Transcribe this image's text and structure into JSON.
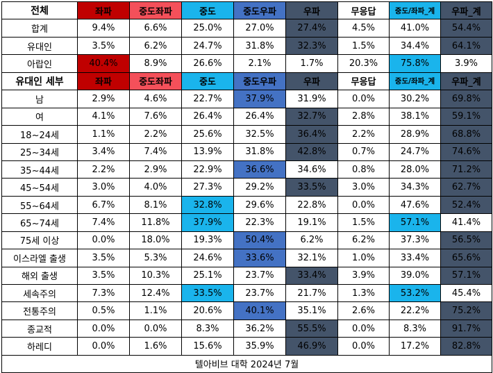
{
  "colors": {
    "left": "#c00000",
    "center_left": "#f4505a",
    "center": "#1ab4ec",
    "center_right": "#4472c4",
    "right": "#44546a",
    "none": "#ffffff"
  },
  "section_all": {
    "header": {
      "label": "전체",
      "cols": [
        "좌파",
        "중도좌파",
        "중도",
        "중도우파",
        "우파",
        "무응답",
        "중도/좌파_계",
        "우파_계"
      ],
      "col_colors": [
        "left",
        "center_left",
        "center",
        "center_right",
        "right",
        "none",
        "center",
        "right"
      ]
    },
    "rows": [
      {
        "label": "합계",
        "values": [
          "9.4%",
          "6.6%",
          "25.0%",
          "27.0%",
          "27.4%",
          "4.5%",
          "41.0%",
          "54.4%"
        ],
        "highlight": [
          "none",
          "none",
          "none",
          "none",
          "right",
          "none",
          "none",
          "right"
        ]
      },
      {
        "label": "유대인",
        "values": [
          "3.5%",
          "6.2%",
          "24.7%",
          "31.8%",
          "32.3%",
          "1.5%",
          "34.4%",
          "64.1%"
        ],
        "highlight": [
          "none",
          "none",
          "none",
          "none",
          "right",
          "none",
          "none",
          "right"
        ]
      },
      {
        "label": "아랍인",
        "values": [
          "40.4%",
          "8.9%",
          "26.6%",
          "2.1%",
          "1.7%",
          "20.3%",
          "75.8%",
          "3.9%"
        ],
        "highlight": [
          "left",
          "none",
          "none",
          "none",
          "none",
          "none",
          "center",
          "none"
        ]
      }
    ]
  },
  "section_jewish": {
    "header": {
      "label": "유대인 세부",
      "cols": [
        "좌파",
        "중도좌파",
        "중도",
        "중도우파",
        "우파",
        "무응답",
        "중도/좌파_계",
        "우파_계"
      ],
      "col_colors": [
        "left",
        "center_left",
        "center",
        "center_right",
        "right",
        "none",
        "center",
        "right"
      ]
    },
    "rows": [
      {
        "label": "남",
        "values": [
          "2.9%",
          "4.6%",
          "22.7%",
          "37.9%",
          "31.9%",
          "0.0%",
          "30.2%",
          "69.8%"
        ],
        "highlight": [
          "none",
          "none",
          "none",
          "center_right",
          "none",
          "none",
          "none",
          "right"
        ]
      },
      {
        "label": "여",
        "values": [
          "4.1%",
          "7.6%",
          "26.4%",
          "26.4%",
          "32.7%",
          "2.8%",
          "38.1%",
          "59.1%"
        ],
        "highlight": [
          "none",
          "none",
          "none",
          "none",
          "right",
          "none",
          "none",
          "right"
        ]
      },
      {
        "label": "18~24세",
        "values": [
          "1.1%",
          "2.2%",
          "25.6%",
          "32.5%",
          "36.4%",
          "2.2%",
          "28.9%",
          "68.8%"
        ],
        "highlight": [
          "none",
          "none",
          "none",
          "none",
          "right",
          "none",
          "none",
          "right"
        ]
      },
      {
        "label": "25~34세",
        "values": [
          "3.4%",
          "7.4%",
          "13.9%",
          "31.8%",
          "42.8%",
          "0.7%",
          "24.7%",
          "74.6%"
        ],
        "highlight": [
          "none",
          "none",
          "none",
          "none",
          "right",
          "none",
          "none",
          "right"
        ]
      },
      {
        "label": "35~44세",
        "values": [
          "2.2%",
          "2.9%",
          "22.9%",
          "36.6%",
          "34.6%",
          "0.8%",
          "28.0%",
          "71.2%"
        ],
        "highlight": [
          "none",
          "none",
          "none",
          "center_right",
          "none",
          "none",
          "none",
          "right"
        ]
      },
      {
        "label": "45~54세",
        "values": [
          "3.0%",
          "4.0%",
          "27.3%",
          "29.2%",
          "33.5%",
          "3.0%",
          "34.3%",
          "62.7%"
        ],
        "highlight": [
          "none",
          "none",
          "none",
          "none",
          "right",
          "none",
          "none",
          "right"
        ]
      },
      {
        "label": "55~64세",
        "values": [
          "6.7%",
          "8.1%",
          "32.8%",
          "29.6%",
          "22.8%",
          "0.0%",
          "47.6%",
          "52.4%"
        ],
        "highlight": [
          "none",
          "none",
          "center",
          "none",
          "none",
          "none",
          "none",
          "right"
        ]
      },
      {
        "label": "65~74세",
        "values": [
          "7.4%",
          "11.8%",
          "37.9%",
          "22.3%",
          "19.1%",
          "1.5%",
          "57.1%",
          "41.4%"
        ],
        "highlight": [
          "none",
          "none",
          "center",
          "none",
          "none",
          "none",
          "center",
          "none"
        ]
      },
      {
        "label": "75세 이상",
        "values": [
          "0.0%",
          "18.0%",
          "19.3%",
          "50.4%",
          "6.2%",
          "6.2%",
          "37.3%",
          "56.5%"
        ],
        "highlight": [
          "none",
          "none",
          "none",
          "center_right",
          "none",
          "none",
          "none",
          "right"
        ]
      },
      {
        "label": "이스라엘 출생",
        "values": [
          "3.5%",
          "5.3%",
          "24.6%",
          "33.6%",
          "32.1%",
          "1.0%",
          "33.4%",
          "65.6%"
        ],
        "highlight": [
          "none",
          "none",
          "none",
          "center_right",
          "none",
          "none",
          "none",
          "right"
        ]
      },
      {
        "label": "해외 출생",
        "values": [
          "3.5%",
          "10.3%",
          "25.1%",
          "23.7%",
          "33.4%",
          "3.9%",
          "39.0%",
          "57.1%"
        ],
        "highlight": [
          "none",
          "none",
          "none",
          "none",
          "right",
          "none",
          "none",
          "right"
        ]
      },
      {
        "label": "세속주의",
        "values": [
          "7.3%",
          "12.4%",
          "33.5%",
          "23.7%",
          "21.7%",
          "1.3%",
          "53.2%",
          "45.4%"
        ],
        "highlight": [
          "none",
          "none",
          "center",
          "none",
          "none",
          "none",
          "center",
          "none"
        ]
      },
      {
        "label": "전통주의",
        "values": [
          "0.5%",
          "1.1%",
          "20.6%",
          "40.1%",
          "35.1%",
          "2.6%",
          "22.2%",
          "75.2%"
        ],
        "highlight": [
          "none",
          "none",
          "none",
          "center_right",
          "none",
          "none",
          "none",
          "right"
        ]
      },
      {
        "label": "종교적",
        "values": [
          "0.0%",
          "0.0%",
          "8.3%",
          "36.2%",
          "55.5%",
          "0.0%",
          "8.3%",
          "91.7%"
        ],
        "highlight": [
          "none",
          "none",
          "none",
          "none",
          "right",
          "none",
          "none",
          "right"
        ]
      },
      {
        "label": "하레디",
        "values": [
          "0.0%",
          "1.6%",
          "15.6%",
          "35.9%",
          "46.9%",
          "0.0%",
          "17.2%",
          "82.8%"
        ],
        "highlight": [
          "none",
          "none",
          "none",
          "none",
          "right",
          "none",
          "none",
          "right"
        ]
      }
    ]
  },
  "footer": {
    "source": "텔아비브 대학 2024년 7월"
  }
}
